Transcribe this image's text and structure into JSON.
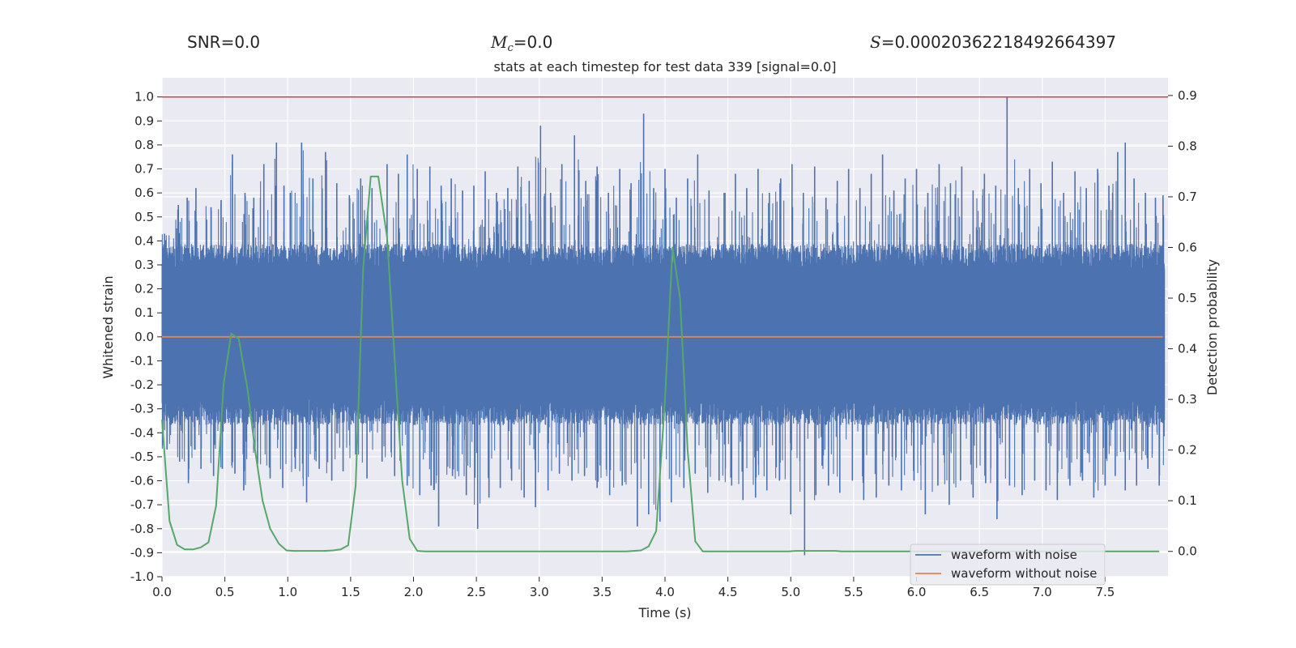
{
  "header": {
    "snr_label": "SNR",
    "snr_value": "=0.0",
    "mc_symbol": "M",
    "mc_sub": "c",
    "mc_value": "=0.0",
    "s_symbol": "S",
    "s_value": "=0.00020362218492664397"
  },
  "chart_data": {
    "type": "line",
    "title": "stats at each timestep for test data 339 [signal=0.0]",
    "xlabel": "Time (s)",
    "ylabel": "Whitened strain",
    "y2label": "Detection probability",
    "xlim": [
      0.0,
      8.0
    ],
    "ylim": [
      -1.0,
      1.08
    ],
    "y2lim": [
      -0.05,
      0.935
    ],
    "x_ticks": [
      "0.0",
      "0.5",
      "1.0",
      "1.5",
      "2.0",
      "2.5",
      "3.0",
      "3.5",
      "4.0",
      "4.5",
      "5.0",
      "5.5",
      "6.0",
      "6.5",
      "7.0",
      "7.5"
    ],
    "y_ticks": [
      "1.0",
      "0.9",
      "0.8",
      "0.7",
      "0.6",
      "0.5",
      "0.4",
      "0.3",
      "0.2",
      "0.1",
      "0.0",
      "-0.1",
      "-0.2",
      "-0.3",
      "-0.4",
      "-0.5",
      "-0.6",
      "-0.7",
      "-0.8",
      "-0.9",
      "-1.0"
    ],
    "y2_ticks": [
      "0.9",
      "0.8",
      "0.7",
      "0.6",
      "0.5",
      "0.4",
      "0.3",
      "0.2",
      "0.1",
      "0.0"
    ],
    "threshold": 1.0,
    "grid": true,
    "legend_position": "bottom-right",
    "colors": {
      "noisy": "#4c72b0",
      "clean": "#dd8452",
      "probability": "#55a868",
      "threshold": "#c44e52",
      "background": "#eaeaf2",
      "grid": "#ffffff"
    },
    "series": [
      {
        "name": "waveform with noise",
        "axis": "left",
        "note": "dense noise; positive peaks and negative troughs as [time_s, strain]",
        "peaks": [
          [
            0.02,
            0.43
          ],
          [
            0.13,
            0.55
          ],
          [
            0.2,
            0.58
          ],
          [
            0.27,
            0.62
          ],
          [
            0.39,
            0.54
          ],
          [
            0.47,
            0.57
          ],
          [
            0.56,
            0.76
          ],
          [
            0.66,
            0.6
          ],
          [
            0.73,
            0.58
          ],
          [
            0.81,
            0.72
          ],
          [
            0.91,
            0.81
          ],
          [
            0.97,
            0.63
          ],
          [
            1.02,
            0.6
          ],
          [
            1.11,
            0.81
          ],
          [
            1.2,
            0.66
          ],
          [
            1.3,
            0.77
          ],
          [
            1.39,
            0.64
          ],
          [
            1.49,
            0.59
          ],
          [
            1.58,
            0.66
          ],
          [
            1.67,
            0.62
          ],
          [
            1.79,
            0.72
          ],
          [
            1.88,
            0.68
          ],
          [
            1.95,
            0.76
          ],
          [
            2.03,
            0.7
          ],
          [
            2.13,
            0.71
          ],
          [
            2.22,
            0.63
          ],
          [
            2.3,
            0.66
          ],
          [
            2.39,
            0.61
          ],
          [
            2.48,
            0.63
          ],
          [
            2.57,
            0.69
          ],
          [
            2.66,
            0.6
          ],
          [
            2.75,
            0.62
          ],
          [
            2.83,
            0.71
          ],
          [
            2.92,
            0.65
          ],
          [
            3.01,
            0.88
          ],
          [
            3.09,
            0.6
          ],
          [
            3.18,
            0.72
          ],
          [
            3.28,
            0.84
          ],
          [
            3.37,
            0.65
          ],
          [
            3.46,
            0.71
          ],
          [
            3.55,
            0.6
          ],
          [
            3.64,
            0.7
          ],
          [
            3.73,
            0.64
          ],
          [
            3.83,
            0.93
          ],
          [
            3.91,
            0.62
          ],
          [
            4.0,
            0.7
          ],
          [
            4.09,
            0.58
          ],
          [
            4.18,
            0.66
          ],
          [
            4.26,
            0.76
          ],
          [
            4.35,
            0.61
          ],
          [
            4.47,
            0.6
          ],
          [
            4.56,
            0.68
          ],
          [
            4.65,
            0.62
          ],
          [
            4.74,
            0.7
          ],
          [
            4.83,
            0.6
          ],
          [
            4.92,
            0.66
          ],
          [
            5.01,
            0.72
          ],
          [
            5.1,
            0.6
          ],
          [
            5.19,
            0.71
          ],
          [
            5.28,
            0.58
          ],
          [
            5.37,
            0.65
          ],
          [
            5.46,
            0.7
          ],
          [
            5.55,
            0.62
          ],
          [
            5.64,
            0.68
          ],
          [
            5.73,
            0.76
          ],
          [
            5.82,
            0.61
          ],
          [
            5.91,
            0.66
          ],
          [
            6.0,
            0.7
          ],
          [
            6.09,
            0.6
          ],
          [
            6.18,
            0.72
          ],
          [
            6.27,
            0.64
          ],
          [
            6.36,
            0.71
          ],
          [
            6.45,
            0.61
          ],
          [
            6.54,
            0.68
          ],
          [
            6.63,
            0.63
          ],
          [
            6.72,
            1.0
          ],
          [
            6.81,
            0.62
          ],
          [
            6.9,
            0.7
          ],
          [
            6.99,
            0.64
          ],
          [
            7.08,
            0.73
          ],
          [
            7.17,
            0.6
          ],
          [
            7.26,
            0.69
          ],
          [
            7.35,
            0.62
          ],
          [
            7.44,
            0.7
          ],
          [
            7.53,
            0.63
          ],
          [
            7.6,
            0.77
          ],
          [
            7.66,
            0.81
          ],
          [
            7.73,
            0.66
          ],
          [
            7.82,
            0.6
          ],
          [
            7.9,
            0.58
          ],
          [
            7.96,
            0.59
          ]
        ],
        "troughs": [
          [
            0.04,
            -0.47
          ],
          [
            0.14,
            -0.52
          ],
          [
            0.21,
            -0.61
          ],
          [
            0.31,
            -0.55
          ],
          [
            0.41,
            -0.58
          ],
          [
            0.48,
            -0.55
          ],
          [
            0.58,
            -0.57
          ],
          [
            0.65,
            -0.64
          ],
          [
            0.76,
            -0.53
          ],
          [
            0.86,
            -0.59
          ],
          [
            0.96,
            -0.63
          ],
          [
            1.06,
            -0.55
          ],
          [
            1.15,
            -0.69
          ],
          [
            1.25,
            -0.55
          ],
          [
            1.35,
            -0.6
          ],
          [
            1.44,
            -0.56
          ],
          [
            1.54,
            -0.49
          ],
          [
            1.63,
            -0.59
          ],
          [
            1.75,
            -0.52
          ],
          [
            1.85,
            -0.58
          ],
          [
            1.95,
            -0.62
          ],
          [
            2.05,
            -0.66
          ],
          [
            2.14,
            -0.62
          ],
          [
            2.2,
            -0.79
          ],
          [
            2.31,
            -0.58
          ],
          [
            2.42,
            -0.66
          ],
          [
            2.51,
            -0.8
          ],
          [
            2.6,
            -0.67
          ],
          [
            2.69,
            -0.63
          ],
          [
            2.78,
            -0.6
          ],
          [
            2.88,
            -0.67
          ],
          [
            2.97,
            -0.71
          ],
          [
            3.07,
            -0.64
          ],
          [
            3.16,
            -0.57
          ],
          [
            3.26,
            -0.6
          ],
          [
            3.36,
            -0.58
          ],
          [
            3.46,
            -0.63
          ],
          [
            3.56,
            -0.66
          ],
          [
            3.66,
            -0.62
          ],
          [
            3.78,
            -0.79
          ],
          [
            3.87,
            -0.74
          ],
          [
            3.96,
            -0.77
          ],
          [
            4.05,
            -0.69
          ],
          [
            4.15,
            -0.63
          ],
          [
            4.24,
            -0.57
          ],
          [
            4.34,
            -0.65
          ],
          [
            4.43,
            -0.6
          ],
          [
            4.53,
            -0.62
          ],
          [
            4.62,
            -0.68
          ],
          [
            4.72,
            -0.67
          ],
          [
            4.81,
            -0.64
          ],
          [
            4.91,
            -0.6
          ],
          [
            5.0,
            -0.74
          ],
          [
            5.11,
            -0.91
          ],
          [
            5.2,
            -0.66
          ],
          [
            5.3,
            -0.62
          ],
          [
            5.39,
            -0.65
          ],
          [
            5.49,
            -0.6
          ],
          [
            5.58,
            -0.68
          ],
          [
            5.68,
            -0.67
          ],
          [
            5.78,
            -0.62
          ],
          [
            5.88,
            -0.64
          ],
          [
            5.98,
            -0.6
          ],
          [
            6.07,
            -0.74
          ],
          [
            6.17,
            -0.62
          ],
          [
            6.26,
            -0.7
          ],
          [
            6.35,
            -0.6
          ],
          [
            6.45,
            -0.67
          ],
          [
            6.55,
            -0.61
          ],
          [
            6.64,
            -0.76
          ],
          [
            6.74,
            -0.62
          ],
          [
            6.84,
            -0.66
          ],
          [
            6.94,
            -0.6
          ],
          [
            7.03,
            -0.64
          ],
          [
            7.12,
            -0.68
          ],
          [
            7.22,
            -0.62
          ],
          [
            7.32,
            -0.6
          ],
          [
            7.41,
            -0.67
          ],
          [
            7.5,
            -0.62
          ],
          [
            7.58,
            -0.58
          ],
          [
            7.66,
            -0.64
          ],
          [
            7.75,
            -0.62
          ],
          [
            7.84,
            -0.55
          ],
          [
            7.93,
            -0.62
          ]
        ]
      },
      {
        "name": "waveform without noise",
        "axis": "left",
        "x": [
          0.0,
          7.96
        ],
        "y": [
          0.0,
          0.0
        ]
      },
      {
        "name": "Detection probability",
        "axis": "right",
        "x": [
          0.0,
          0.06,
          0.12,
          0.18,
          0.25,
          0.31,
          0.37,
          0.43,
          0.49,
          0.55,
          0.61,
          0.68,
          0.74,
          0.8,
          0.86,
          0.93,
          0.99,
          1.05,
          1.11,
          1.17,
          1.23,
          1.29,
          1.36,
          1.42,
          1.48,
          1.54,
          1.6,
          1.66,
          1.72,
          1.79,
          1.85,
          1.91,
          1.97,
          2.03,
          2.09,
          2.15,
          2.21,
          2.28,
          2.34,
          2.4,
          2.46,
          2.52,
          2.58,
          2.64,
          2.71,
          2.77,
          2.83,
          2.89,
          2.95,
          3.01,
          3.07,
          3.14,
          3.2,
          3.26,
          3.32,
          3.38,
          3.44,
          3.5,
          3.57,
          3.63,
          3.69,
          3.75,
          3.81,
          3.87,
          3.93,
          4.0,
          4.06,
          4.12,
          4.18,
          4.24,
          4.3,
          4.36,
          4.43,
          4.49,
          4.55,
          4.61,
          4.67,
          4.73,
          4.79,
          4.86,
          4.92,
          4.98,
          5.04,
          5.1,
          5.16,
          5.22,
          5.29,
          5.35,
          5.41,
          5.47,
          5.53,
          5.59,
          5.65,
          5.72,
          5.78,
          5.84,
          5.9,
          5.96,
          6.02,
          6.08,
          6.15,
          6.21,
          6.27,
          6.33,
          6.39,
          6.45,
          6.51,
          6.58,
          6.64,
          6.7,
          6.76,
          6.82,
          6.88,
          6.94,
          7.01,
          7.07,
          7.13,
          7.19,
          7.25,
          7.31,
          7.37,
          7.44,
          7.5,
          7.56,
          7.62,
          7.68,
          7.74,
          7.8,
          7.87,
          7.93
        ],
        "y": [
          0.26,
          0.06,
          0.013,
          0.004,
          0.004,
          0.008,
          0.018,
          0.09,
          0.33,
          0.43,
          0.42,
          0.32,
          0.2,
          0.1,
          0.045,
          0.015,
          0.002,
          0.001,
          0.001,
          0.001,
          0.001,
          0.001,
          0.002,
          0.004,
          0.012,
          0.13,
          0.56,
          0.74,
          0.74,
          0.62,
          0.38,
          0.14,
          0.025,
          0.001,
          0.0,
          0.0,
          0.0,
          0.0,
          0.0,
          0.0,
          0.0,
          0.0,
          0.0,
          0.0,
          0.0,
          0.0,
          0.0,
          0.0,
          0.0,
          0.0,
          0.0,
          0.0,
          0.0,
          0.0,
          0.0,
          0.0,
          0.0,
          0.0,
          0.0,
          0.0,
          0.0,
          0.001,
          0.002,
          0.01,
          0.04,
          0.3,
          0.6,
          0.5,
          0.2,
          0.02,
          0.0,
          0.0,
          0.0,
          0.0,
          0.0,
          0.0,
          0.0,
          0.0,
          0.0,
          0.0,
          0.0,
          0.0,
          0.001,
          0.001,
          0.001,
          0.001,
          0.001,
          0.001,
          0.0,
          0.0,
          0.0,
          0.0,
          0.0,
          0.0,
          0.0,
          0.0,
          0.0,
          0.0,
          0.0,
          0.0,
          0.0,
          0.0,
          0.0,
          0.0,
          0.0,
          0.0,
          0.0,
          0.0,
          0.0,
          0.0,
          0.0,
          0.0,
          0.0,
          0.0,
          0.0,
          0.0,
          0.0,
          0.0,
          0.0,
          0.0,
          0.0,
          0.0,
          0.0,
          0.0,
          0.0,
          0.0,
          0.0,
          0.0,
          0.0,
          0.0
        ]
      }
    ]
  }
}
